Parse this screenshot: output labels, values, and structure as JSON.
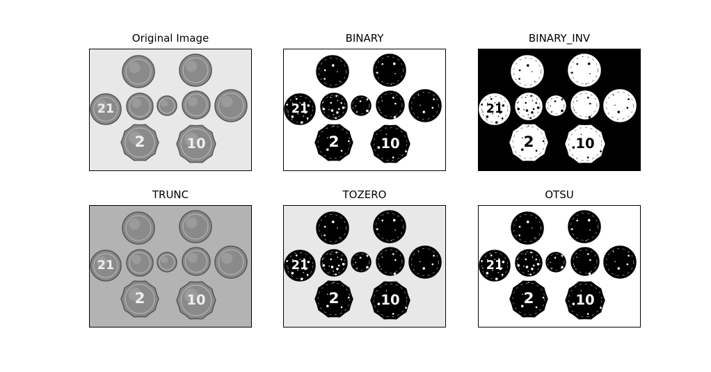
{
  "panels": [
    {
      "title": "Original Image",
      "mode": "original"
    },
    {
      "title": "BINARY",
      "mode": "binary"
    },
    {
      "title": "BINARY_INV",
      "mode": "binary_inv"
    },
    {
      "title": "TRUNC",
      "mode": "trunc"
    },
    {
      "title": "TOZERO",
      "mode": "tozero"
    },
    {
      "title": "OTSU",
      "mode": "otsu"
    }
  ],
  "coin_labels": {
    "coin_2": "2",
    "coin_10": "10",
    "coin_21": "21"
  },
  "colors": {
    "background_light": "#e8e8e8",
    "trunc_background": "#b3b3b3",
    "coin_gray": "#8a8a8a",
    "black": "#000000",
    "white": "#ffffff"
  }
}
